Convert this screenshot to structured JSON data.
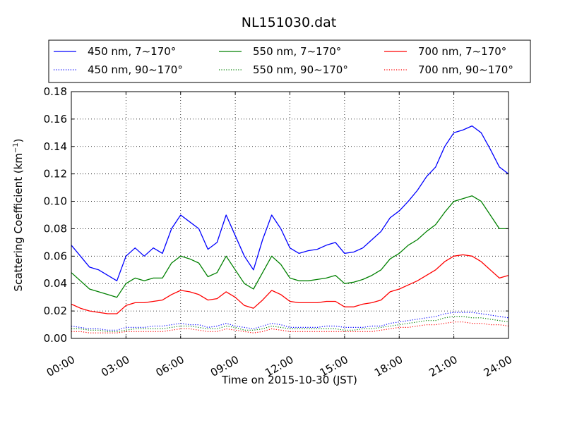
{
  "chart_data": {
    "type": "line",
    "title": "NL151030.dat",
    "xlabel": "Time on 2015-10-30 (JST)",
    "ylabel": "Scattering Coefficient (km",
    "ylabel_exp": "−1",
    "ylabel_close": ")",
    "xlim": [
      0,
      24
    ],
    "ylim": [
      0,
      0.18
    ],
    "x_ticks": [
      0,
      3,
      6,
      9,
      12,
      15,
      18,
      21,
      24
    ],
    "x_tick_labels": [
      "00:00",
      "03:00",
      "06:00",
      "09:00",
      "12:00",
      "15:00",
      "18:00",
      "21:00",
      "24:00"
    ],
    "y_ticks": [
      0,
      0.02,
      0.04,
      0.06,
      0.08,
      0.1,
      0.12,
      0.14,
      0.16,
      0.18
    ],
    "y_tick_labels": [
      "0.00",
      "0.02",
      "0.04",
      "0.06",
      "0.08",
      "0.10",
      "0.12",
      "0.14",
      "0.16",
      "0.18"
    ],
    "grid": true,
    "legend_placement": "top, above plot, 3 columns",
    "x": [
      0,
      0.5,
      1,
      1.5,
      2,
      2.5,
      3,
      3.5,
      4,
      4.5,
      5,
      5.5,
      6,
      6.5,
      7,
      7.5,
      8,
      8.5,
      9,
      9.5,
      10,
      10.5,
      11,
      11.5,
      12,
      12.5,
      13,
      13.5,
      14,
      14.5,
      15,
      15.5,
      16,
      16.5,
      17,
      17.5,
      18,
      18.5,
      19,
      19.5,
      20,
      20.5,
      21,
      21.5,
      22,
      22.5,
      23,
      23.5,
      24
    ],
    "series": [
      {
        "name": "450 nm, 7∼170°",
        "color": "#0000ff",
        "style": "solid",
        "values": [
          0.068,
          0.06,
          0.052,
          0.05,
          0.046,
          0.042,
          0.06,
          0.066,
          0.06,
          0.066,
          0.062,
          0.08,
          0.09,
          0.085,
          0.08,
          0.065,
          0.07,
          0.09,
          0.075,
          0.06,
          0.05,
          0.072,
          0.09,
          0.08,
          0.066,
          0.062,
          0.064,
          0.065,
          0.068,
          0.07,
          0.062,
          0.063,
          0.066,
          0.072,
          0.078,
          0.088,
          0.093,
          0.1,
          0.108,
          0.118,
          0.125,
          0.14,
          0.15,
          0.152,
          0.155,
          0.15,
          0.138,
          0.125,
          0.12
        ]
      },
      {
        "name": "550 nm, 7∼170°",
        "color": "#008000",
        "style": "solid",
        "values": [
          0.048,
          0.042,
          0.036,
          0.034,
          0.032,
          0.03,
          0.04,
          0.044,
          0.042,
          0.044,
          0.044,
          0.055,
          0.06,
          0.058,
          0.055,
          0.045,
          0.048,
          0.06,
          0.05,
          0.04,
          0.036,
          0.048,
          0.06,
          0.054,
          0.044,
          0.042,
          0.042,
          0.043,
          0.044,
          0.046,
          0.04,
          0.041,
          0.043,
          0.046,
          0.05,
          0.058,
          0.062,
          0.068,
          0.072,
          0.078,
          0.083,
          0.092,
          0.1,
          0.102,
          0.104,
          0.1,
          0.09,
          0.08,
          0.08
        ]
      },
      {
        "name": "700 nm, 7∼170°",
        "color": "#ff0000",
        "style": "solid",
        "values": [
          0.025,
          0.022,
          0.02,
          0.019,
          0.018,
          0.018,
          0.024,
          0.026,
          0.026,
          0.027,
          0.028,
          0.032,
          0.035,
          0.034,
          0.032,
          0.028,
          0.029,
          0.034,
          0.03,
          0.024,
          0.022,
          0.028,
          0.035,
          0.032,
          0.027,
          0.026,
          0.026,
          0.026,
          0.027,
          0.027,
          0.023,
          0.023,
          0.025,
          0.026,
          0.028,
          0.034,
          0.036,
          0.039,
          0.042,
          0.046,
          0.05,
          0.056,
          0.06,
          0.061,
          0.06,
          0.056,
          0.05,
          0.044,
          0.046
        ]
      },
      {
        "name": "450 nm, 90∼170°",
        "color": "#0000ff",
        "style": "dotted",
        "values": [
          0.009,
          0.008,
          0.007,
          0.007,
          0.006,
          0.006,
          0.008,
          0.008,
          0.008,
          0.009,
          0.009,
          0.01,
          0.011,
          0.01,
          0.01,
          0.008,
          0.009,
          0.011,
          0.009,
          0.008,
          0.007,
          0.009,
          0.011,
          0.01,
          0.008,
          0.008,
          0.008,
          0.008,
          0.009,
          0.009,
          0.008,
          0.008,
          0.008,
          0.009,
          0.009,
          0.011,
          0.012,
          0.013,
          0.014,
          0.015,
          0.016,
          0.018,
          0.019,
          0.019,
          0.019,
          0.018,
          0.017,
          0.016,
          0.015
        ]
      },
      {
        "name": "550 nm, 90∼170°",
        "color": "#008000",
        "style": "dotted",
        "values": [
          0.007,
          0.007,
          0.006,
          0.006,
          0.005,
          0.005,
          0.006,
          0.007,
          0.007,
          0.007,
          0.007,
          0.008,
          0.009,
          0.009,
          0.008,
          0.007,
          0.007,
          0.009,
          0.008,
          0.006,
          0.006,
          0.007,
          0.009,
          0.008,
          0.007,
          0.007,
          0.007,
          0.007,
          0.007,
          0.007,
          0.006,
          0.006,
          0.007,
          0.007,
          0.008,
          0.009,
          0.01,
          0.011,
          0.012,
          0.013,
          0.013,
          0.015,
          0.016,
          0.016,
          0.015,
          0.015,
          0.014,
          0.013,
          0.012
        ]
      },
      {
        "name": "700 nm, 90∼170°",
        "color": "#ff0000",
        "style": "dotted",
        "values": [
          0.005,
          0.005,
          0.004,
          0.004,
          0.004,
          0.004,
          0.005,
          0.005,
          0.005,
          0.005,
          0.005,
          0.006,
          0.007,
          0.007,
          0.006,
          0.005,
          0.005,
          0.007,
          0.006,
          0.005,
          0.004,
          0.005,
          0.007,
          0.006,
          0.005,
          0.005,
          0.005,
          0.005,
          0.005,
          0.005,
          0.005,
          0.005,
          0.005,
          0.005,
          0.006,
          0.007,
          0.008,
          0.008,
          0.009,
          0.01,
          0.01,
          0.011,
          0.012,
          0.012,
          0.011,
          0.011,
          0.01,
          0.01,
          0.009
        ]
      }
    ]
  }
}
